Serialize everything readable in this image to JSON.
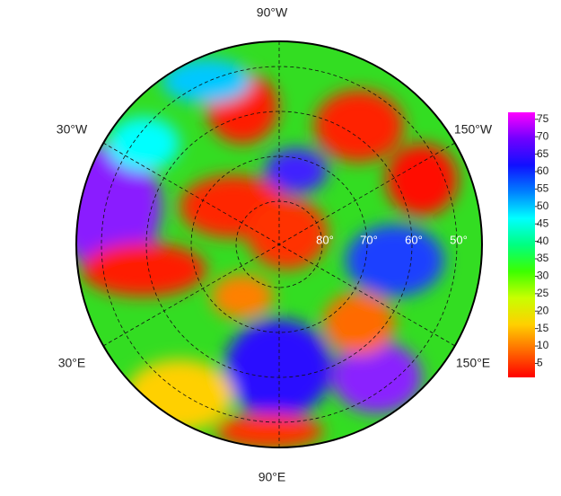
{
  "map": {
    "lon_labels": [
      "90°W",
      "30°W",
      "150°W",
      "30°E",
      "150°E",
      "90°E"
    ],
    "lat_labels": [
      "80°",
      "70°",
      "60°",
      "50°"
    ]
  },
  "colorbar": {
    "lim": [
      1,
      77
    ],
    "ticks": [
      5,
      10,
      15,
      20,
      25,
      30,
      35,
      40,
      45,
      50,
      55,
      60,
      65,
      70,
      75
    ],
    "colors": [
      "#ff0000",
      "#ff6a00",
      "#ffd000",
      "#c8ff00",
      "#3cff00",
      "#00ff80",
      "#00ffff",
      "#0080ff",
      "#1010ff",
      "#7000ff",
      "#ff00ff"
    ]
  }
}
